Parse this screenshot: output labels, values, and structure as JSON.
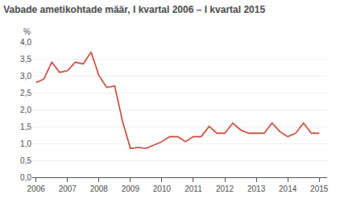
{
  "chart_data": {
    "type": "line",
    "title": "Vabade ametikohtade määr, I kvartal 2006 – I kvartal 2015",
    "ylabel": "%",
    "x": [
      2006.0,
      2006.25,
      2006.5,
      2006.75,
      2007.0,
      2007.25,
      2007.5,
      2007.75,
      2008.0,
      2008.25,
      2008.5,
      2008.75,
      2009.0,
      2009.25,
      2009.5,
      2009.75,
      2010.0,
      2010.25,
      2010.5,
      2010.75,
      2011.0,
      2011.25,
      2011.5,
      2011.75,
      2012.0,
      2012.25,
      2012.5,
      2012.75,
      2013.0,
      2013.25,
      2013.5,
      2013.75,
      2014.0,
      2014.25,
      2014.5,
      2014.75,
      2015.0
    ],
    "values": [
      2.8,
      2.9,
      3.4,
      3.1,
      3.15,
      3.4,
      3.35,
      3.7,
      3.0,
      2.65,
      2.7,
      1.65,
      0.85,
      0.88,
      0.85,
      0.95,
      1.05,
      1.2,
      1.2,
      1.05,
      1.2,
      1.2,
      1.5,
      1.3,
      1.3,
      1.6,
      1.4,
      1.3,
      1.3,
      1.3,
      1.6,
      1.35,
      1.2,
      1.3,
      1.6,
      1.3,
      1.3
    ],
    "color": "#c0392b",
    "xlim": [
      2005.88,
      2015.25
    ],
    "xticks": [
      2006,
      2007,
      2008,
      2009,
      2010,
      2011,
      2012,
      2013,
      2014,
      2015
    ],
    "ylim": [
      0.0,
      4.0
    ],
    "yticks": [
      {
        "value": 0.0,
        "label": "0,0"
      },
      {
        "value": 0.5,
        "label": "0,5"
      },
      {
        "value": 1.0,
        "label": "1,0"
      },
      {
        "value": 1.5,
        "label": "1,5"
      },
      {
        "value": 2.0,
        "label": "2,0"
      },
      {
        "value": 2.5,
        "label": "2,5"
      },
      {
        "value": 3.0,
        "label": "3,0"
      },
      {
        "value": 3.5,
        "label": "3,5"
      },
      {
        "value": 4.0,
        "label": "4,0"
      }
    ],
    "grid": true
  }
}
